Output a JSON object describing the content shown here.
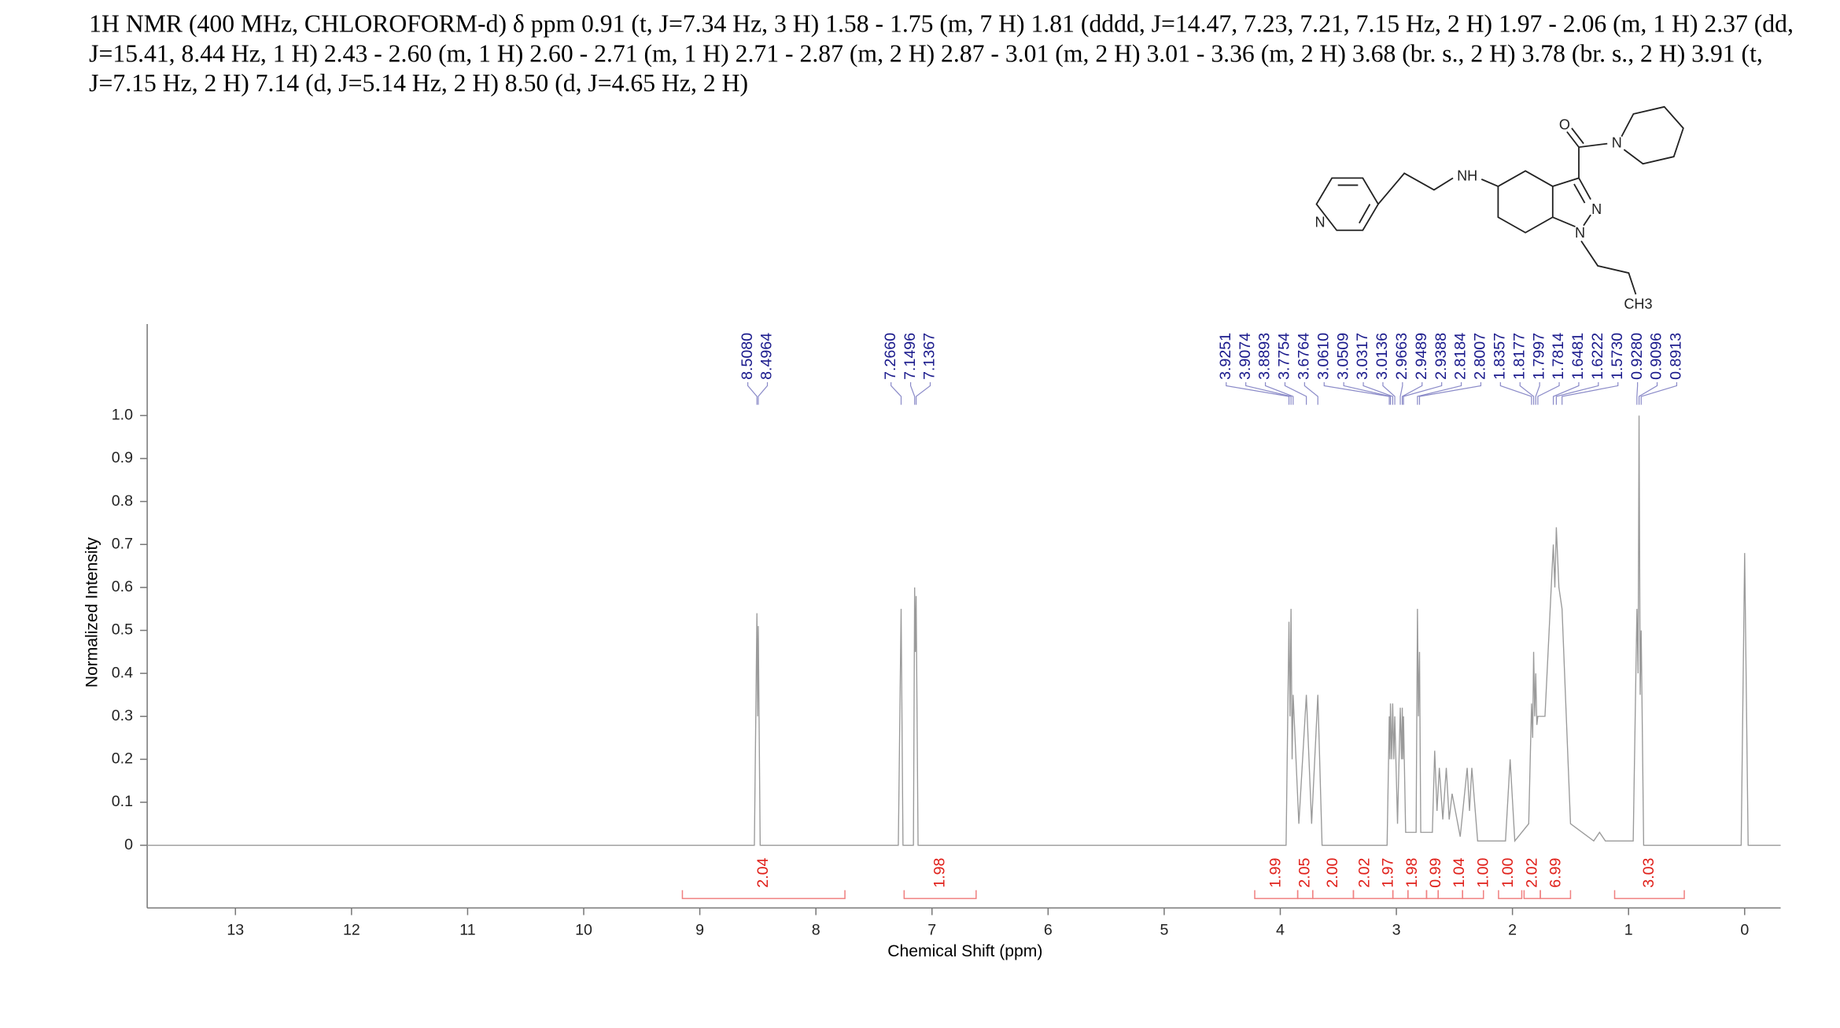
{
  "chart_data": {
    "type": "line",
    "header": "1H NMR (400 MHz, CHLOROFORM-d) δ ppm 0.91 (t, J=7.34 Hz, 3 H) 1.58 - 1.75 (m, 7 H) 1.81 (dddd, J=14.47, 7.23, 7.21, 7.15 Hz, 2 H) 1.97 - 2.06 (m, 1 H) 2.37 (dd, J=15.41, 8.44 Hz, 1 H) 2.43 - 2.60 (m, 1 H) 2.60 - 2.71 (m, 1 H) 2.71 - 2.87 (m, 2 H) 2.87 - 3.01 (m, 2 H) 3.01 - 3.36 (m, 2 H) 3.68 (br. s., 2 H) 3.78 (br. s., 2 H) 3.91 (t, J=7.15 Hz, 2 H) 7.14 (d, J=5.14 Hz, 2 H) 8.50 (d, J=4.65 Hz, 2 H)",
    "xlabel": "Chemical Shift (ppm)",
    "ylabel": "Normalized Intensity",
    "xlim": [
      13.76,
      -0.31
    ],
    "ylim": [
      -0.146,
      1.213
    ],
    "xticks": [
      13,
      12,
      11,
      10,
      9,
      8,
      7,
      6,
      5,
      4,
      3,
      2,
      1,
      0
    ],
    "yticks": [
      0,
      0.1,
      0.2,
      0.3,
      0.4,
      0.5,
      0.6,
      0.7,
      0.8,
      0.9,
      {
        "value": 1,
        "label": "1.0"
      }
    ],
    "series": [
      {
        "color": "#9a9a9a",
        "x": [
          13.76,
          8.53,
          8.508,
          8.502,
          8.4964,
          8.48,
          7.29,
          7.266,
          7.25,
          7.16,
          7.1496,
          7.143,
          7.1367,
          7.12,
          3.95,
          3.9251,
          3.916,
          3.9074,
          3.898,
          3.8893,
          3.84,
          3.7754,
          3.73,
          3.6764,
          3.64,
          3.08,
          3.061,
          3.055,
          3.0509,
          3.04,
          3.0317,
          3.022,
          3.0136,
          2.99,
          2.9663,
          2.956,
          2.9489,
          2.944,
          2.9388,
          2.92,
          2.83,
          2.8184,
          2.81,
          2.8007,
          2.79,
          2.69,
          2.67,
          2.65,
          2.63,
          2.6,
          2.57,
          2.545,
          2.52,
          2.45,
          2.39,
          2.37,
          2.35,
          2.3,
          2.06,
          2.02,
          1.98,
          1.86,
          1.8357,
          1.826,
          1.8177,
          1.808,
          1.7997,
          1.79,
          1.7814,
          1.72,
          1.6481,
          1.635,
          1.6222,
          1.6,
          1.573,
          1.5,
          1.3,
          1.25,
          1.2,
          0.96,
          0.928,
          0.918,
          0.9096,
          0.9,
          0.8913,
          0.87,
          0.03,
          0,
          -0.03,
          -0.31
        ],
        "values": [
          0,
          0,
          0.54,
          0.3,
          0.51,
          0,
          0,
          0.55,
          0,
          0,
          0.6,
          0.45,
          0.58,
          0,
          0,
          0.52,
          0.3,
          0.55,
          0.2,
          0.35,
          0.05,
          0.35,
          0.05,
          0.35,
          0,
          0,
          0.3,
          0.2,
          0.33,
          0.2,
          0.33,
          0.2,
          0.3,
          0.05,
          0.32,
          0.2,
          0.32,
          0.2,
          0.3,
          0.03,
          0.03,
          0.55,
          0.3,
          0.45,
          0.03,
          0.03,
          0.22,
          0.08,
          0.18,
          0.06,
          0.18,
          0.06,
          0.12,
          0.02,
          0.18,
          0.08,
          0.18,
          0.01,
          0.01,
          0.2,
          0.01,
          0.05,
          0.33,
          0.25,
          0.45,
          0.3,
          0.4,
          0.28,
          0.3,
          0.3,
          0.7,
          0.6,
          0.74,
          0.6,
          0.55,
          0.05,
          0.01,
          0.03,
          0.01,
          0.01,
          0.55,
          0.4,
          1.0,
          0.35,
          0.5,
          0,
          0,
          0.68,
          0,
          0
        ]
      }
    ],
    "peak_labels": {
      "color": "#1a1a8c",
      "values": [
        8.508,
        8.4964,
        7.266,
        7.1496,
        7.1367,
        3.9251,
        3.9074,
        3.8893,
        3.7754,
        3.6764,
        3.061,
        3.0509,
        3.0317,
        3.0136,
        2.9663,
        2.9489,
        2.9388,
        2.8184,
        2.8007,
        1.8357,
        1.8177,
        1.7997,
        1.7814,
        1.6481,
        1.6222,
        1.573,
        0.928,
        0.9096,
        0.8913
      ],
      "value_labels": [
        "8.5080",
        "8.4964",
        "7.2660",
        "7.1496",
        "7.1367",
        "3.9251",
        "3.9074",
        "3.8893",
        "3.7754",
        "3.6764",
        "3.0610",
        "3.0509",
        "3.0317",
        "3.0136",
        "2.9663",
        "2.9489",
        "2.9388",
        "2.8184",
        "2.8007",
        "1.8357",
        "1.8177",
        "1.7997",
        "1.7814",
        "1.6481",
        "1.6222",
        "1.5730",
        "0.9280",
        "0.9096",
        "0.8913"
      ]
    },
    "integrals": {
      "color": "#e0201a",
      "values": [
        2.04,
        1.98,
        1.99,
        2.05,
        2,
        2.02,
        1.97,
        1.98,
        0.99,
        1.04,
        1,
        1,
        2.02,
        6.99,
        3.03
      ],
      "value_labels": [
        "2.04",
        "1.98",
        "1.99",
        "2.05",
        "2.00",
        "2.02",
        "1.97",
        "1.98",
        "0.99",
        "1.04",
        "1.00",
        "1.00",
        "2.02",
        "6.99",
        "3.03"
      ],
      "ranges": [
        [
          9.15,
          7.75
        ],
        [
          7.24,
          6.62
        ],
        [
          4.22,
          3.85
        ],
        [
          3.85,
          3.72
        ],
        [
          3.72,
          3.37
        ],
        [
          3.37,
          3.03
        ],
        [
          3.03,
          2.9
        ],
        [
          2.9,
          2.74
        ],
        [
          2.74,
          2.64
        ],
        [
          2.64,
          2.43
        ],
        [
          2.43,
          2.25
        ],
        [
          2.12,
          1.92
        ],
        [
          1.9,
          1.76
        ],
        [
          1.76,
          1.5
        ],
        [
          1.12,
          0.52
        ]
      ]
    },
    "structure": {
      "labels": [
        "O",
        "N",
        "NH",
        "N",
        "N",
        "N",
        "CH3"
      ]
    }
  }
}
